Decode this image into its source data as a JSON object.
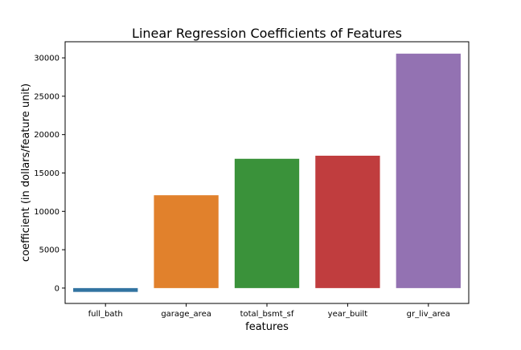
{
  "chart_data": {
    "type": "bar",
    "title": "Linear Regression Coefficients of Features",
    "xlabel": "features",
    "ylabel": "coefficient (in dollars/feature unit)",
    "categories": [
      "full_bath",
      "garage_area",
      "total_bsmt_sf",
      "year_built",
      "gr_liv_area"
    ],
    "values": [
      -500,
      12100,
      16850,
      17250,
      30550
    ],
    "colors": [
      "#3274a1",
      "#e1812c",
      "#3a923a",
      "#c03d3e",
      "#9372b2"
    ],
    "ylim": [
      -2000,
      32100
    ],
    "yticks": [
      0,
      5000,
      10000,
      15000,
      20000,
      25000,
      30000
    ],
    "grid": false,
    "legend": "none"
  }
}
